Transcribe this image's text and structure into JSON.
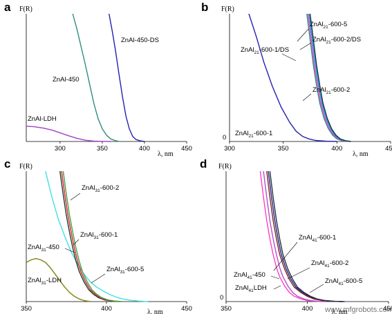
{
  "chart_data": [
    {
      "panel": "a",
      "type": "line",
      "ylabel": "F(R)",
      "xlabel": "λ, nm",
      "xlim": [
        260,
        450
      ],
      "xticks": [
        300,
        350,
        400,
        450
      ],
      "ylim": [
        0,
        1
      ],
      "series": [
        {
          "name": "ZnAl-LDH",
          "color": "#a040c8",
          "x": [
            260,
            270,
            280,
            290,
            300,
            310,
            320,
            330,
            340,
            350,
            360
          ],
          "y": [
            0.12,
            0.115,
            0.105,
            0.09,
            0.068,
            0.045,
            0.025,
            0.01,
            0.003,
            0.001,
            0
          ]
        },
        {
          "name": "ZnAl-450",
          "color": "#2e8b82",
          "x": [
            315,
            320,
            325,
            330,
            335,
            340,
            345,
            350,
            355,
            360,
            365,
            370
          ],
          "y": [
            1.0,
            0.88,
            0.74,
            0.6,
            0.45,
            0.3,
            0.18,
            0.1,
            0.05,
            0.02,
            0.008,
            0
          ]
        },
        {
          "name": "ZnAl-450-DS",
          "color": "#2020b0",
          "x": [
            358,
            362,
            366,
            370,
            374,
            378,
            382,
            386,
            390,
            395,
            400
          ],
          "y": [
            1.0,
            0.86,
            0.7,
            0.52,
            0.35,
            0.2,
            0.1,
            0.04,
            0.015,
            0.005,
            0
          ]
        }
      ],
      "labels": [
        "ZnAl-LDH",
        "ZnAl-450",
        "ZnAl-450-DS"
      ]
    },
    {
      "panel": "b",
      "type": "line",
      "ylabel": "F(R)",
      "xlabel": "λ, nm",
      "xlim": [
        300,
        450
      ],
      "xticks": [
        300,
        350,
        400,
        450
      ],
      "yticks": [
        0
      ],
      "ylim": [
        0,
        1
      ],
      "series": [
        {
          "name": "ZnAl21-600-1",
          "color": "#2020b0",
          "x": [
            318,
            325,
            332,
            340,
            348,
            356,
            362,
            368,
            374,
            380,
            390,
            400
          ],
          "y": [
            1.0,
            0.82,
            0.62,
            0.43,
            0.27,
            0.15,
            0.08,
            0.04,
            0.02,
            0.008,
            0.002,
            0
          ]
        },
        {
          "name": "ZnAl21-600-1/DS",
          "color": "#2e8b82",
          "x": [
            372,
            375,
            378,
            381,
            384,
            388,
            392,
            396,
            400,
            405,
            410
          ],
          "y": [
            1.0,
            0.8,
            0.6,
            0.44,
            0.3,
            0.18,
            0.1,
            0.05,
            0.02,
            0.006,
            0
          ]
        },
        {
          "name": "ZnAl21-600-2",
          "color": "#ff40c0",
          "x": [
            373,
            376,
            379,
            382,
            385,
            389,
            393,
            397,
            401,
            406,
            411
          ],
          "y": [
            1.0,
            0.8,
            0.6,
            0.44,
            0.3,
            0.18,
            0.1,
            0.05,
            0.02,
            0.006,
            0
          ]
        },
        {
          "name": "ZnAl21-600-2/DS",
          "color": "#00a6e6",
          "x": [
            374,
            377,
            380,
            383,
            386,
            390,
            394,
            398,
            402,
            407,
            412
          ],
          "y": [
            1.0,
            0.8,
            0.6,
            0.44,
            0.3,
            0.18,
            0.1,
            0.05,
            0.02,
            0.006,
            0
          ]
        },
        {
          "name": "ZnAl21-600-5",
          "color": "#1a2a40",
          "x": [
            375,
            378,
            381,
            384,
            387,
            391,
            395,
            399,
            403,
            408,
            413
          ],
          "y": [
            1.0,
            0.8,
            0.6,
            0.44,
            0.3,
            0.18,
            0.1,
            0.05,
            0.02,
            0.006,
            0
          ]
        }
      ],
      "labels": [
        "ZnAl21-600-5",
        "ZnAl21-600-2/DS",
        "ZnAl21-600-1/DS",
        "ZnAl21-600-2",
        "ZnAl21-600-1"
      ]
    },
    {
      "panel": "c",
      "type": "line",
      "ylabel": "F(R)",
      "xlabel": "λ, nm",
      "xlim": [
        350,
        450
      ],
      "xticks": [
        350,
        400,
        450
      ],
      "ylim": [
        0,
        1
      ],
      "series": [
        {
          "name": "ZnAl31-LDH",
          "color": "#808010",
          "x": [
            350,
            353,
            356,
            359,
            362,
            365,
            368,
            371,
            374,
            377,
            380,
            383,
            386,
            390
          ],
          "y": [
            0.3,
            0.32,
            0.33,
            0.32,
            0.3,
            0.26,
            0.21,
            0.16,
            0.11,
            0.07,
            0.04,
            0.02,
            0.008,
            0
          ]
        },
        {
          "name": "ZnAl31-450",
          "color": "#40e0e0",
          "x": [
            362,
            366,
            370,
            374,
            378,
            382,
            386,
            390,
            394,
            398,
            402,
            406,
            410,
            415,
            420,
            426
          ],
          "y": [
            1.0,
            0.8,
            0.63,
            0.5,
            0.38,
            0.29,
            0.21,
            0.15,
            0.11,
            0.08,
            0.055,
            0.035,
            0.02,
            0.01,
            0.004,
            0
          ]
        },
        {
          "name": "ZnAl31-600-1",
          "color": "#1a3a3a",
          "x": [
            371,
            373,
            375,
            377,
            379,
            381,
            383,
            386,
            389,
            392,
            395,
            399,
            403,
            408
          ],
          "y": [
            1.0,
            0.82,
            0.66,
            0.53,
            0.41,
            0.31,
            0.23,
            0.15,
            0.09,
            0.055,
            0.03,
            0.012,
            0.004,
            0
          ]
        },
        {
          "name": "ZnAl31-600-2",
          "color": "#e02020",
          "x": [
            372,
            374,
            376,
            378,
            380,
            382,
            384,
            387,
            390,
            393,
            396,
            400,
            404,
            409
          ],
          "y": [
            1.0,
            0.82,
            0.66,
            0.53,
            0.41,
            0.31,
            0.23,
            0.15,
            0.09,
            0.055,
            0.03,
            0.012,
            0.004,
            0
          ]
        },
        {
          "name": "ZnAl31-600-5",
          "color": "#40a040",
          "x": [
            373,
            375,
            377,
            379,
            381,
            383,
            385,
            388,
            391,
            394,
            397,
            401,
            405,
            410
          ],
          "y": [
            1.0,
            0.82,
            0.66,
            0.53,
            0.41,
            0.31,
            0.23,
            0.15,
            0.09,
            0.055,
            0.03,
            0.012,
            0.004,
            0
          ]
        }
      ],
      "labels": [
        "ZnAl31-600-2",
        "ZnAl31-600-1",
        "ZnAl31-450",
        "ZnAl31-600-5",
        "ZnAl31-LDH"
      ]
    },
    {
      "panel": "d",
      "type": "line",
      "ylabel": "F(R)",
      "xlabel": "λ, nm",
      "xlim": [
        350,
        450
      ],
      "xticks": [
        350,
        400,
        450
      ],
      "yticks": [
        0
      ],
      "ylim": [
        0,
        1
      ],
      "series": [
        {
          "name": "ZnAl41-LDH",
          "color": "#ff40c0",
          "x": [
            371,
            373,
            375,
            377,
            379,
            381,
            383,
            386,
            389,
            392,
            396,
            400,
            405,
            410
          ],
          "y": [
            1.0,
            0.8,
            0.62,
            0.48,
            0.36,
            0.26,
            0.19,
            0.12,
            0.07,
            0.04,
            0.02,
            0.008,
            0.002,
            0
          ]
        },
        {
          "name": "ZnAl41-450",
          "color": "#b050d0",
          "x": [
            373,
            375,
            377,
            379,
            381,
            383,
            385,
            388,
            391,
            394,
            398,
            402,
            407,
            412
          ],
          "y": [
            1.0,
            0.8,
            0.62,
            0.48,
            0.36,
            0.26,
            0.19,
            0.12,
            0.07,
            0.04,
            0.02,
            0.008,
            0.002,
            0
          ]
        },
        {
          "name": "ZnAl41-600-1",
          "color": "#202080",
          "x": [
            376,
            378,
            380,
            382,
            384,
            387,
            390,
            393,
            397,
            401,
            405,
            410,
            416,
            422
          ],
          "y": [
            1.0,
            0.8,
            0.62,
            0.48,
            0.36,
            0.25,
            0.17,
            0.11,
            0.07,
            0.04,
            0.02,
            0.008,
            0.002,
            0
          ]
        },
        {
          "name": "ZnAl41-600-2",
          "color": "#802020",
          "x": [
            375,
            377,
            379,
            381,
            383,
            386,
            389,
            392,
            396,
            400,
            404,
            409,
            415,
            421
          ],
          "y": [
            1.0,
            0.8,
            0.62,
            0.48,
            0.36,
            0.25,
            0.17,
            0.11,
            0.07,
            0.04,
            0.02,
            0.008,
            0.002,
            0
          ]
        },
        {
          "name": "ZnAl41-600-5",
          "color": "#203040",
          "x": [
            377,
            379,
            381,
            383,
            385,
            388,
            391,
            394,
            398,
            402,
            406,
            411,
            417,
            423
          ],
          "y": [
            1.0,
            0.8,
            0.62,
            0.48,
            0.36,
            0.25,
            0.17,
            0.11,
            0.07,
            0.04,
            0.02,
            0.008,
            0.002,
            0
          ]
        }
      ],
      "labels": [
        "ZnAl41-600-1",
        "ZnAl41-450",
        "ZnAl41-600-2",
        "ZnAl41LDH",
        "ZnAl41-600-5"
      ]
    }
  ],
  "watermark": "www.mfgrobots.com"
}
